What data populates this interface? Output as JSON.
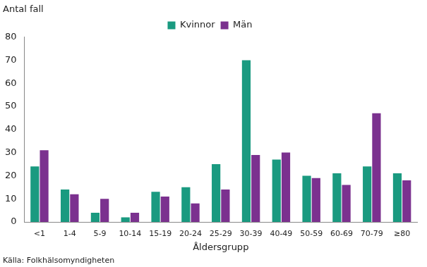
{
  "chart_data": {
    "type": "bar",
    "ylabel": "Antal fall",
    "xlabel": "Åldersgrupp",
    "source": "Källa: Folkhälsomyndigheten",
    "categories": [
      "<1",
      "1-4",
      "5-9",
      "10-14",
      "15-19",
      "20-24",
      "25-29",
      "30-39",
      "40-49",
      "50-59",
      "60-69",
      "70-79",
      "≥80"
    ],
    "series": [
      {
        "name": "Kvinnor",
        "color": "#1a9a80",
        "values": [
          24,
          14,
          4,
          2,
          13,
          15,
          25,
          70,
          27,
          20,
          21,
          24,
          21
        ]
      },
      {
        "name": "Män",
        "color": "#7b318f",
        "values": [
          31,
          12,
          10,
          4,
          11,
          8,
          14,
          29,
          30,
          19,
          16,
          47,
          18
        ]
      }
    ],
    "ylim": [
      0,
      80
    ],
    "yticks": [
      0,
      10,
      20,
      30,
      40,
      50,
      60,
      70,
      80
    ],
    "grid": false,
    "legend": "top"
  }
}
